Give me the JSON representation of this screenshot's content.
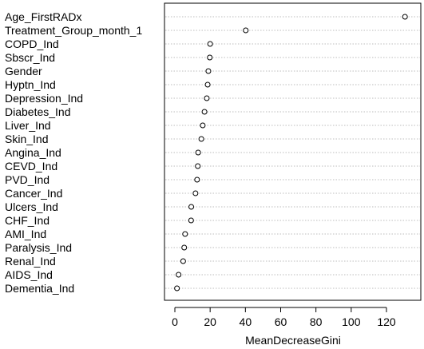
{
  "chart_data": {
    "type": "scatter",
    "variant": "dotchart",
    "xlabel": "MeanDecreaseGini",
    "ylabel": "",
    "title": "",
    "xlim": [
      0,
      130
    ],
    "x_ticks": [
      0,
      20,
      40,
      60,
      80,
      100,
      120
    ],
    "grid": "horizontal dotted per category",
    "marker": "open circle",
    "categories": [
      "Age_FirstRADx",
      "Treatment_Group_month_1",
      "COPD_Ind",
      "Sbscr_Ind",
      "Gender",
      "Hyptn_Ind",
      "Depression_Ind",
      "Diabetes_Ind",
      "Liver_Ind",
      "Skin_Ind",
      "Angina_Ind",
      "CEVD_Ind",
      "PVD_Ind",
      "Cancer_Ind",
      "Ulcers_Ind",
      "CHF_Ind",
      "AMI_Ind",
      "Paralysis_Ind",
      "Renal_Ind",
      "AIDS_Ind",
      "Dementia_Ind"
    ],
    "values": [
      130.5,
      40.2,
      20.0,
      19.8,
      19.0,
      18.6,
      18.1,
      16.8,
      15.8,
      15.0,
      13.2,
      13.0,
      12.6,
      11.7,
      9.3,
      9.2,
      5.8,
      5.3,
      4.7,
      2.1,
      1.2
    ]
  }
}
